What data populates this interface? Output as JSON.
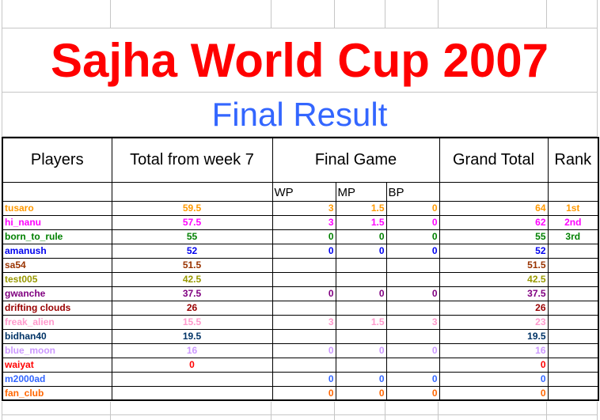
{
  "sheet": {
    "title": "Sajha World Cup 2007",
    "title_color": "#ff0000",
    "subtitle": "Final Result",
    "subtitle_color": "#3366ff",
    "gridline_color": "#c6c6c6"
  },
  "table": {
    "headers": {
      "players": "Players",
      "total": "Total from week 7",
      "final_game": "Final Game",
      "wp": "WP",
      "mp": "MP",
      "bp": "BP",
      "grand_total": "Grand Total",
      "rank": "Rank"
    },
    "rows": [
      {
        "name": "tusaro",
        "color": "#ff9900",
        "total": "59.5",
        "wp": "3",
        "mp": "1.5",
        "bp": "0",
        "grand": "64",
        "rank": "1st"
      },
      {
        "name": "hi_nanu",
        "color": "#ff00ff",
        "total": "57.5",
        "wp": "3",
        "mp": "1.5",
        "bp": "0",
        "grand": "62",
        "rank": "2nd"
      },
      {
        "name": "born_to_rule",
        "color": "#008000",
        "total": "55",
        "wp": "0",
        "mp": "0",
        "bp": "0",
        "grand": "55",
        "rank": "3rd"
      },
      {
        "name": "amanush",
        "color": "#0000ee",
        "total": "52",
        "wp": "0",
        "mp": "0",
        "bp": "0",
        "grand": "52",
        "rank": ""
      },
      {
        "name": "sa54",
        "color": "#993300",
        "total": "51.5",
        "wp": "",
        "mp": "",
        "bp": "",
        "grand": "51.5",
        "rank": ""
      },
      {
        "name": "test005",
        "color": "#999900",
        "total": "42.5",
        "wp": "",
        "mp": "",
        "bp": "",
        "grand": "42.5",
        "rank": ""
      },
      {
        "name": "gwanche",
        "color": "#800080",
        "total": "37.5",
        "wp": "0",
        "mp": "0",
        "bp": "0",
        "grand": "37.5",
        "rank": ""
      },
      {
        "name": "drifting clouds",
        "color": "#990000",
        "total": "26",
        "wp": "",
        "mp": "",
        "bp": "",
        "grand": "26",
        "rank": ""
      },
      {
        "name": "freak_alien",
        "color": "#ff99cc",
        "total": "15.5",
        "wp": "3",
        "mp": "1.5",
        "bp": "3",
        "grand": "23",
        "rank": ""
      },
      {
        "name": "bidhan40",
        "color": "#003366",
        "total": "19.5",
        "wp": "",
        "mp": "",
        "bp": "",
        "grand": "19.5",
        "rank": ""
      },
      {
        "name": "blue_moon",
        "color": "#cc99ff",
        "total": "16",
        "wp": "0",
        "mp": "0",
        "bp": "0",
        "grand": "16",
        "rank": ""
      },
      {
        "name": "waiyat",
        "color": "#ff0000",
        "total": "0",
        "wp": "",
        "mp": "",
        "bp": "",
        "grand": "0",
        "rank": ""
      },
      {
        "name": "m2000ad",
        "color": "#3366ff",
        "total": "",
        "wp": "0",
        "mp": "0",
        "bp": "0",
        "grand": "0",
        "rank": ""
      },
      {
        "name": "fan_club",
        "color": "#ff6600",
        "total": "",
        "wp": "0",
        "mp": "0",
        "bp": "0",
        "grand": "0",
        "rank": ""
      }
    ]
  }
}
